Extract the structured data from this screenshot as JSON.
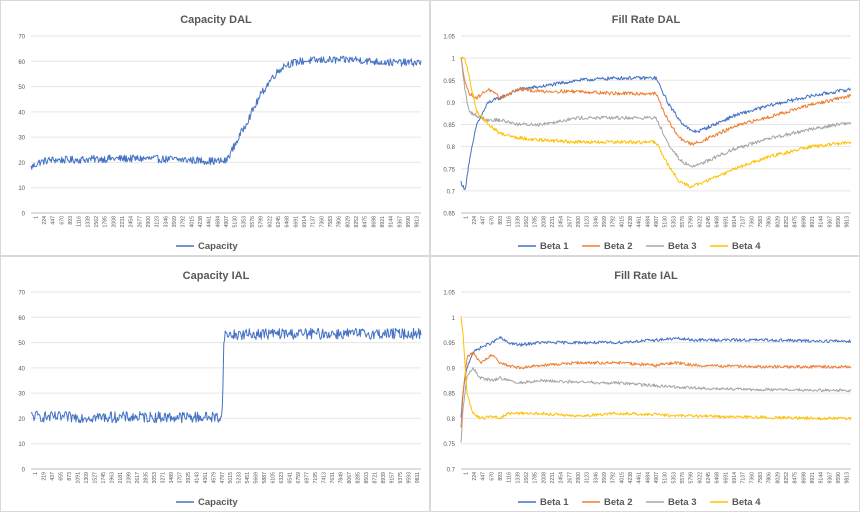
{
  "colors": {
    "capacity": "#4472c4",
    "beta1": "#4472c4",
    "beta2": "#ed7d31",
    "beta3": "#a5a5a5",
    "beta4": "#ffc000",
    "grid": "#e6e6e6",
    "axis_text": "#595959",
    "title_text": "#595959"
  },
  "chart_data": [
    {
      "type": "line",
      "title": "Capacity DAL",
      "ylim": [
        0,
        70
      ],
      "yticks": [
        "0",
        "10",
        "20",
        "30",
        "40",
        "50",
        "60",
        "70"
      ],
      "x_ticks": [
        "1",
        "224",
        "447",
        "670",
        "893",
        "1116",
        "1339",
        "1562",
        "1785",
        "2008",
        "2231",
        "2454",
        "2677",
        "2900",
        "3123",
        "3346",
        "3569",
        "3792",
        "4015",
        "4238",
        "4461",
        "4684",
        "4907",
        "5130",
        "5353",
        "5576",
        "5799",
        "6022",
        "6245",
        "6468",
        "6691",
        "6914",
        "7137",
        "7360",
        "7583",
        "7806",
        "8029",
        "8252",
        "8475",
        "8698",
        "8921",
        "9144",
        "9367",
        "9590",
        "9813"
      ],
      "x_range": [
        1,
        10000
      ],
      "grid": "horizontal",
      "legend_position": "bottom",
      "series": [
        {
          "name": "Capacity",
          "x": [
            1,
            200,
            500,
            1000,
            2000,
            3000,
            4000,
            4700,
            5000,
            5300,
            5600,
            5900,
            6200,
            6500,
            6900,
            7500,
            8000,
            8300,
            8700,
            9300,
            10000
          ],
          "values": [
            18,
            20,
            21,
            21,
            21.5,
            21.5,
            21,
            20.5,
            20.5,
            29,
            38,
            47,
            54,
            58.5,
            60,
            60.5,
            60.5,
            60.8,
            60,
            59.5,
            59.5
          ],
          "noise": 1.5
        }
      ]
    },
    {
      "type": "line",
      "title": "Fill Rate DAL",
      "ylim": [
        0.65,
        1.05
      ],
      "yticks": [
        "0.65",
        "0.7",
        "0.75",
        "0.8",
        "0.85",
        "0.9",
        "0.95",
        "1",
        "1.05"
      ],
      "x_ticks": [
        "1",
        "224",
        "447",
        "670",
        "893",
        "1116",
        "1339",
        "1562",
        "1785",
        "2008",
        "2231",
        "2454",
        "2677",
        "2900",
        "3123",
        "3346",
        "3569",
        "3792",
        "4015",
        "4238",
        "4461",
        "4684",
        "4907",
        "5130",
        "5353",
        "5576",
        "5799",
        "6022",
        "6245",
        "6468",
        "6691",
        "6914",
        "7137",
        "7360",
        "7583",
        "7806",
        "8029",
        "8252",
        "8475",
        "8698",
        "8921",
        "9144",
        "9367",
        "9590",
        "9813"
      ],
      "x_range": [
        1,
        10000
      ],
      "grid": "horizontal",
      "legend_position": "bottom",
      "series": [
        {
          "name": "Beta 1",
          "x": [
            1,
            100,
            200,
            400,
            700,
            1000,
            1500,
            2000,
            3000,
            4000,
            4700,
            5000,
            5300,
            5600,
            5900,
            6100,
            6500,
            7000,
            8000,
            9000,
            10000
          ],
          "values": [
            0.72,
            0.7,
            0.76,
            0.85,
            0.9,
            0.91,
            0.93,
            0.935,
            0.95,
            0.955,
            0.955,
            0.955,
            0.9,
            0.86,
            0.835,
            0.835,
            0.85,
            0.87,
            0.895,
            0.915,
            0.93
          ],
          "noise": 0.004
        },
        {
          "name": "Beta 2",
          "x": [
            1,
            100,
            200,
            400,
            700,
            1000,
            1500,
            2000,
            3000,
            4000,
            4700,
            5000,
            5300,
            5600,
            5900,
            6100,
            6500,
            7000,
            8000,
            9000,
            10000
          ],
          "values": [
            1.0,
            0.95,
            0.92,
            0.91,
            0.93,
            0.91,
            0.93,
            0.925,
            0.925,
            0.92,
            0.92,
            0.92,
            0.86,
            0.82,
            0.805,
            0.81,
            0.825,
            0.845,
            0.87,
            0.895,
            0.915
          ],
          "noise": 0.004
        },
        {
          "name": "Beta 3",
          "x": [
            1,
            100,
            200,
            400,
            700,
            1000,
            1500,
            2000,
            3000,
            4000,
            4700,
            5000,
            5300,
            5600,
            5900,
            6100,
            6500,
            7000,
            8000,
            9000,
            10000
          ],
          "values": [
            1.0,
            0.93,
            0.88,
            0.87,
            0.86,
            0.86,
            0.85,
            0.85,
            0.865,
            0.865,
            0.865,
            0.865,
            0.81,
            0.77,
            0.755,
            0.76,
            0.775,
            0.795,
            0.82,
            0.84,
            0.855
          ],
          "noise": 0.004
        },
        {
          "name": "Beta 4",
          "x": [
            1,
            100,
            200,
            400,
            700,
            1000,
            1500,
            2000,
            3000,
            4000,
            4700,
            5000,
            5300,
            5600,
            5900,
            6100,
            6500,
            7000,
            8000,
            9000,
            10000
          ],
          "values": [
            1.0,
            1.0,
            0.96,
            0.88,
            0.85,
            0.83,
            0.82,
            0.815,
            0.81,
            0.81,
            0.81,
            0.81,
            0.76,
            0.72,
            0.71,
            0.715,
            0.73,
            0.75,
            0.78,
            0.8,
            0.81
          ],
          "noise": 0.004
        }
      ]
    },
    {
      "type": "line",
      "title": "Capacity IAL",
      "ylim": [
        0,
        70
      ],
      "yticks": [
        "0",
        "10",
        "20",
        "30",
        "40",
        "50",
        "60",
        "70"
      ],
      "x_ticks": [
        "1",
        "219",
        "437",
        "655",
        "873",
        "1091",
        "1309",
        "1527",
        "1745",
        "1963",
        "2181",
        "2399",
        "2617",
        "2835",
        "3053",
        "3271",
        "3489",
        "3707",
        "3925",
        "4143",
        "4361",
        "4579",
        "4797",
        "5015",
        "5233",
        "5451",
        "5669",
        "5887",
        "6105",
        "6323",
        "6541",
        "6759",
        "6977",
        "7195",
        "7413",
        "7631",
        "7849",
        "8067",
        "8285",
        "8503",
        "8721",
        "8939",
        "9157",
        "9375",
        "9593",
        "9811"
      ],
      "x_range": [
        1,
        10000
      ],
      "grid": "horizontal",
      "legend_position": "bottom",
      "series": [
        {
          "name": "Capacity",
          "x": [
            1,
            500,
            1000,
            2000,
            3000,
            4000,
            4900,
            4950,
            5000,
            6000,
            7000,
            8000,
            9000,
            10000
          ],
          "values": [
            21,
            20.5,
            20.5,
            20.5,
            20.5,
            20.5,
            20.5,
            53,
            53,
            53.5,
            53.5,
            53.5,
            53.5,
            53.5
          ],
          "noise": 2.2
        }
      ]
    },
    {
      "type": "line",
      "title": "Fill Rate IAL",
      "ylim": [
        0.7,
        1.05
      ],
      "yticks": [
        "0.7",
        "0.75",
        "0.8",
        "0.85",
        "0.9",
        "0.95",
        "1",
        "1.05"
      ],
      "x_ticks": [
        "1",
        "224",
        "447",
        "670",
        "893",
        "1116",
        "1339",
        "1562",
        "1785",
        "2008",
        "2231",
        "2454",
        "2677",
        "2900",
        "3123",
        "3346",
        "3569",
        "3792",
        "4015",
        "4238",
        "4461",
        "4684",
        "4907",
        "5130",
        "5353",
        "5576",
        "5799",
        "6022",
        "6245",
        "6468",
        "6691",
        "6914",
        "7137",
        "7360",
        "7583",
        "7806",
        "8029",
        "8252",
        "8475",
        "8698",
        "8921",
        "9144",
        "9367",
        "9590",
        "9813"
      ],
      "x_range": [
        1,
        10000
      ],
      "grid": "horizontal",
      "legend_position": "bottom",
      "series": [
        {
          "name": "Beta 1",
          "x": [
            1,
            50,
            150,
            300,
            500,
            800,
            1000,
            1200,
            1500,
            2000,
            3000,
            4000,
            5000,
            5500,
            6000,
            7000,
            8000,
            9000,
            10000
          ],
          "values": [
            0.8,
            0.85,
            0.9,
            0.93,
            0.94,
            0.95,
            0.96,
            0.95,
            0.945,
            0.95,
            0.95,
            0.95,
            0.955,
            0.958,
            0.955,
            0.955,
            0.955,
            0.953,
            0.953
          ],
          "noise": 0.003
        },
        {
          "name": "Beta 2",
          "x": [
            1,
            50,
            150,
            300,
            500,
            800,
            1000,
            1200,
            1500,
            2000,
            3000,
            4000,
            5000,
            5500,
            6000,
            7000,
            8000,
            9000,
            10000
          ],
          "values": [
            0.78,
            0.85,
            0.92,
            0.93,
            0.91,
            0.925,
            0.91,
            0.905,
            0.9,
            0.905,
            0.91,
            0.91,
            0.905,
            0.91,
            0.905,
            0.903,
            0.902,
            0.902,
            0.902
          ],
          "noise": 0.003
        },
        {
          "name": "Beta 3",
          "x": [
            1,
            50,
            150,
            300,
            500,
            800,
            1000,
            1200,
            1500,
            2000,
            3000,
            4000,
            5000,
            5500,
            6000,
            7000,
            8000,
            9000,
            10000
          ],
          "values": [
            0.75,
            0.82,
            0.88,
            0.9,
            0.88,
            0.875,
            0.88,
            0.875,
            0.87,
            0.875,
            0.872,
            0.87,
            0.865,
            0.862,
            0.86,
            0.858,
            0.857,
            0.856,
            0.855
          ],
          "noise": 0.003
        },
        {
          "name": "Beta 4",
          "x": [
            1,
            50,
            150,
            300,
            500,
            800,
            1000,
            1200,
            1500,
            2000,
            3000,
            4000,
            5000,
            5500,
            6000,
            7000,
            8000,
            9000,
            10000
          ],
          "values": [
            1.0,
            0.97,
            0.85,
            0.81,
            0.8,
            0.805,
            0.8,
            0.81,
            0.81,
            0.81,
            0.805,
            0.81,
            0.808,
            0.805,
            0.805,
            0.803,
            0.802,
            0.8,
            0.8
          ],
          "noise": 0.003
        }
      ]
    }
  ]
}
